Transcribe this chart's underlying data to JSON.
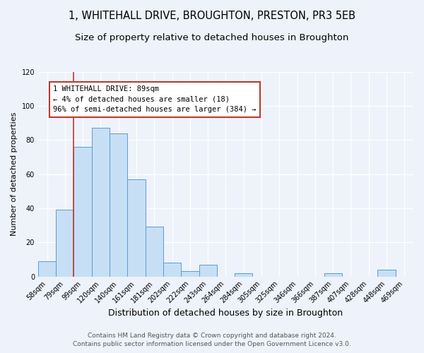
{
  "title": "1, WHITEHALL DRIVE, BROUGHTON, PRESTON, PR3 5EB",
  "subtitle": "Size of property relative to detached houses in Broughton",
  "xlabel": "Distribution of detached houses by size in Broughton",
  "ylabel": "Number of detached properties",
  "bar_labels": [
    "58sqm",
    "79sqm",
    "99sqm",
    "120sqm",
    "140sqm",
    "161sqm",
    "181sqm",
    "202sqm",
    "222sqm",
    "243sqm",
    "264sqm",
    "284sqm",
    "305sqm",
    "325sqm",
    "346sqm",
    "366sqm",
    "387sqm",
    "407sqm",
    "428sqm",
    "448sqm",
    "469sqm"
  ],
  "bar_heights": [
    9,
    39,
    76,
    87,
    84,
    57,
    29,
    8,
    3,
    7,
    0,
    2,
    0,
    0,
    0,
    0,
    2,
    0,
    0,
    4,
    0
  ],
  "bar_color": "#c6dff5",
  "bar_edge_color": "#5b9bd5",
  "ylim": [
    0,
    120
  ],
  "yticks": [
    0,
    20,
    40,
    60,
    80,
    100,
    120
  ],
  "vline_x_index": 1.5,
  "vline_color": "#c0392b",
  "annotation_box_text": "1 WHITEHALL DRIVE: 89sqm\n← 4% of detached houses are smaller (18)\n96% of semi-detached houses are larger (384) →",
  "annotation_box_facecolor": "white",
  "annotation_box_edgecolor": "#c0392b",
  "footer_line1": "Contains HM Land Registry data © Crown copyright and database right 2024.",
  "footer_line2": "Contains public sector information licensed under the Open Government Licence v3.0.",
  "title_fontsize": 10.5,
  "subtitle_fontsize": 9.5,
  "xlabel_fontsize": 9,
  "ylabel_fontsize": 8,
  "tick_fontsize": 7,
  "annotation_fontsize": 7.5,
  "footer_fontsize": 6.5,
  "background_color": "#eef2fa"
}
